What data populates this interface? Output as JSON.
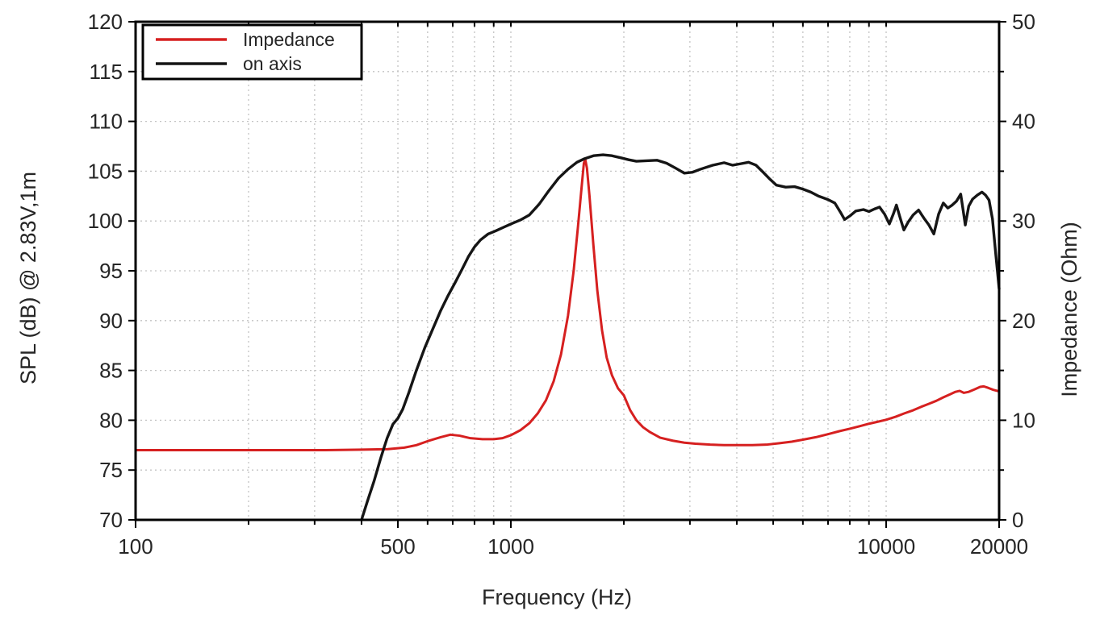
{
  "figure": {
    "background": "#ffffff",
    "frame_color": "#000000",
    "grid": {
      "color": "#c3c3c3",
      "dash": "2 4"
    },
    "text_color": "#262626",
    "axes": {
      "x": {
        "label": "Frequency (Hz)",
        "scale": "log",
        "min": 100,
        "max": 20000,
        "major_ticks": [
          {
            "value": 100,
            "label": "100"
          },
          {
            "value": 500,
            "label": "500"
          },
          {
            "value": 1000,
            "label": "1000"
          },
          {
            "value": 10000,
            "label": "10000"
          },
          {
            "value": 20000,
            "label": "20000"
          }
        ],
        "gridline_frequencies": [
          200,
          300,
          400,
          500,
          600,
          700,
          800,
          900,
          1000,
          2000,
          3000,
          4000,
          5000,
          6000,
          7000,
          8000,
          9000,
          10000
        ]
      },
      "y_left": {
        "label": "SPL (dB) @ 2.83V,1m",
        "min": 70,
        "max": 120,
        "ticks": [
          70,
          75,
          80,
          85,
          90,
          95,
          100,
          105,
          110,
          115,
          120
        ],
        "gridline_values": [
          75,
          80,
          85,
          90,
          95,
          100,
          105,
          110,
          115
        ]
      },
      "y_right": {
        "label": "Impedance (Ohm)",
        "min": 0,
        "max": 50,
        "major_ticks": [
          0,
          10,
          20,
          30,
          40,
          50
        ],
        "minor_ticks": [
          5,
          15,
          25,
          35,
          45
        ]
      }
    },
    "legend": {
      "items": [
        {
          "label": "Impedance",
          "color": "#d62020"
        },
        {
          "label": "on axis",
          "color": "#151515"
        }
      ]
    }
  },
  "chart_data": {
    "type": "line",
    "title": "",
    "xlabel": "Frequency (Hz)",
    "ylabel_left": "SPL (dB) @ 2.83V,1m",
    "ylabel_right": "Impedance (Ohm)",
    "x_scale": "log",
    "xlim": [
      100,
      20000
    ],
    "ylim_left": [
      70,
      120
    ],
    "ylim_right": [
      0,
      50
    ],
    "grid": true,
    "legend_position": "upper-left",
    "series": [
      {
        "name": "Impedance",
        "axis": "right",
        "unit": "Ohm",
        "color": "#d62020",
        "points": [
          [
            100,
            7.0
          ],
          [
            140,
            7.0
          ],
          [
            190,
            7.0
          ],
          [
            250,
            7.0
          ],
          [
            320,
            7.0
          ],
          [
            400,
            7.05
          ],
          [
            470,
            7.1
          ],
          [
            520,
            7.25
          ],
          [
            560,
            7.5
          ],
          [
            600,
            7.9
          ],
          [
            650,
            8.3
          ],
          [
            690,
            8.55
          ],
          [
            730,
            8.45
          ],
          [
            780,
            8.2
          ],
          [
            840,
            8.1
          ],
          [
            900,
            8.1
          ],
          [
            950,
            8.2
          ],
          [
            1000,
            8.5
          ],
          [
            1060,
            9.0
          ],
          [
            1120,
            9.7
          ],
          [
            1180,
            10.7
          ],
          [
            1240,
            12.0
          ],
          [
            1300,
            13.9
          ],
          [
            1360,
            16.6
          ],
          [
            1420,
            20.5
          ],
          [
            1470,
            25.0
          ],
          [
            1510,
            29.5
          ],
          [
            1540,
            33.0
          ],
          [
            1565,
            35.8
          ],
          [
            1578,
            36.2
          ],
          [
            1595,
            35.3
          ],
          [
            1620,
            32.5
          ],
          [
            1660,
            27.5
          ],
          [
            1700,
            23.0
          ],
          [
            1750,
            19.0
          ],
          [
            1800,
            16.3
          ],
          [
            1860,
            14.5
          ],
          [
            1930,
            13.2
          ],
          [
            2000,
            12.5
          ],
          [
            2080,
            11.0
          ],
          [
            2160,
            10.0
          ],
          [
            2250,
            9.3
          ],
          [
            2350,
            8.8
          ],
          [
            2500,
            8.25
          ],
          [
            2700,
            7.95
          ],
          [
            2900,
            7.75
          ],
          [
            3100,
            7.65
          ],
          [
            3400,
            7.55
          ],
          [
            3700,
            7.5
          ],
          [
            4000,
            7.5
          ],
          [
            4400,
            7.5
          ],
          [
            4800,
            7.55
          ],
          [
            5200,
            7.7
          ],
          [
            5600,
            7.85
          ],
          [
            6000,
            8.05
          ],
          [
            6500,
            8.3
          ],
          [
            7000,
            8.6
          ],
          [
            7500,
            8.9
          ],
          [
            8000,
            9.15
          ],
          [
            8500,
            9.4
          ],
          [
            9000,
            9.65
          ],
          [
            9500,
            9.85
          ],
          [
            10000,
            10.05
          ],
          [
            10600,
            10.35
          ],
          [
            11200,
            10.7
          ],
          [
            11800,
            11.0
          ],
          [
            12400,
            11.35
          ],
          [
            13000,
            11.65
          ],
          [
            13600,
            11.95
          ],
          [
            14200,
            12.3
          ],
          [
            14800,
            12.6
          ],
          [
            15300,
            12.85
          ],
          [
            15700,
            12.95
          ],
          [
            16100,
            12.75
          ],
          [
            16600,
            12.85
          ],
          [
            17200,
            13.1
          ],
          [
            17800,
            13.35
          ],
          [
            18200,
            13.4
          ],
          [
            18700,
            13.25
          ],
          [
            19300,
            13.05
          ],
          [
            20000,
            12.9
          ]
        ]
      },
      {
        "name": "on axis",
        "axis": "left",
        "unit": "dB",
        "color": "#151515",
        "points": [
          [
            400,
            70
          ],
          [
            415,
            71.9
          ],
          [
            432,
            73.9
          ],
          [
            450,
            76.2
          ],
          [
            468,
            78.2
          ],
          [
            485,
            79.6
          ],
          [
            500,
            80.2
          ],
          [
            515,
            81.1
          ],
          [
            535,
            82.8
          ],
          [
            560,
            85.0
          ],
          [
            590,
            87.3
          ],
          [
            620,
            89.2
          ],
          [
            650,
            91.0
          ],
          [
            680,
            92.5
          ],
          [
            710,
            93.8
          ],
          [
            740,
            95.1
          ],
          [
            770,
            96.4
          ],
          [
            800,
            97.4
          ],
          [
            830,
            98.1
          ],
          [
            870,
            98.7
          ],
          [
            910,
            99.0
          ],
          [
            960,
            99.4
          ],
          [
            1000,
            99.7
          ],
          [
            1060,
            100.1
          ],
          [
            1120,
            100.6
          ],
          [
            1190,
            101.7
          ],
          [
            1260,
            103.0
          ],
          [
            1340,
            104.3
          ],
          [
            1420,
            105.2
          ],
          [
            1500,
            105.9
          ],
          [
            1570,
            106.25
          ],
          [
            1660,
            106.55
          ],
          [
            1760,
            106.65
          ],
          [
            1860,
            106.55
          ],
          [
            1960,
            106.35
          ],
          [
            2060,
            106.15
          ],
          [
            2160,
            106.0
          ],
          [
            2300,
            106.05
          ],
          [
            2450,
            106.1
          ],
          [
            2600,
            105.8
          ],
          [
            2750,
            105.3
          ],
          [
            2900,
            104.8
          ],
          [
            3050,
            104.9
          ],
          [
            3200,
            105.2
          ],
          [
            3450,
            105.6
          ],
          [
            3700,
            105.85
          ],
          [
            3900,
            105.6
          ],
          [
            4100,
            105.75
          ],
          [
            4300,
            105.9
          ],
          [
            4500,
            105.6
          ],
          [
            4700,
            104.9
          ],
          [
            4900,
            104.2
          ],
          [
            5100,
            103.6
          ],
          [
            5400,
            103.4
          ],
          [
            5700,
            103.45
          ],
          [
            6000,
            103.2
          ],
          [
            6300,
            102.9
          ],
          [
            6600,
            102.5
          ],
          [
            7000,
            102.15
          ],
          [
            7300,
            101.8
          ],
          [
            7550,
            100.9
          ],
          [
            7750,
            100.15
          ],
          [
            8000,
            100.5
          ],
          [
            8300,
            101.0
          ],
          [
            8700,
            101.15
          ],
          [
            9000,
            100.95
          ],
          [
            9300,
            101.2
          ],
          [
            9600,
            101.4
          ],
          [
            9900,
            100.7
          ],
          [
            10200,
            99.7
          ],
          [
            10450,
            100.7
          ],
          [
            10650,
            101.6
          ],
          [
            10900,
            100.3
          ],
          [
            11150,
            99.1
          ],
          [
            11450,
            99.9
          ],
          [
            11800,
            100.6
          ],
          [
            12200,
            101.1
          ],
          [
            12600,
            100.3
          ],
          [
            13000,
            99.6
          ],
          [
            13400,
            98.7
          ],
          [
            13800,
            100.7
          ],
          [
            14200,
            101.8
          ],
          [
            14600,
            101.3
          ],
          [
            15000,
            101.6
          ],
          [
            15400,
            102.0
          ],
          [
            15800,
            102.7
          ],
          [
            16050,
            101.0
          ],
          [
            16250,
            99.6
          ],
          [
            16600,
            101.5
          ],
          [
            17000,
            102.2
          ],
          [
            17500,
            102.6
          ],
          [
            18000,
            102.9
          ],
          [
            18400,
            102.6
          ],
          [
            18800,
            102.1
          ],
          [
            19200,
            100.2
          ],
          [
            19600,
            96.6
          ],
          [
            20000,
            93.2
          ]
        ]
      }
    ]
  }
}
